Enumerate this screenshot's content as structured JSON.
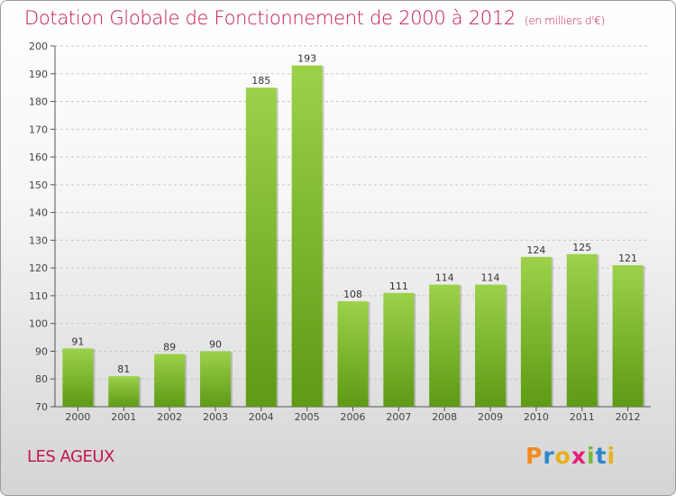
{
  "header": {
    "title": "Dotation Globale de Fonctionnement de 2000 à 2012",
    "unit": "(en milliers d'€)"
  },
  "footer": {
    "commune": "LES AGEUX",
    "logo_text": "Proxiti"
  },
  "colors": {
    "title": "#c4174a",
    "bar_top": "#9dd14a",
    "bar_bottom": "#5e9a14",
    "logo": [
      "#f08a1c",
      "#2d86c9",
      "#e8b01a",
      "#e2207a",
      "#7ab83a",
      "#2d86c9",
      "#e8b01a"
    ]
  },
  "chart_data": {
    "type": "bar",
    "categories": [
      "2000",
      "2001",
      "2002",
      "2003",
      "2004",
      "2005",
      "2006",
      "2007",
      "2008",
      "2009",
      "2010",
      "2011",
      "2012"
    ],
    "values": [
      91,
      81,
      89,
      90,
      185,
      193,
      108,
      111,
      114,
      114,
      124,
      125,
      121
    ],
    "title": "Dotation Globale de Fonctionnement de 2000 à 2012",
    "subtitle": "(en milliers d'€)",
    "xlabel": "",
    "ylabel": "",
    "ylim": [
      70,
      200
    ],
    "yticks": [
      70,
      80,
      90,
      100,
      110,
      120,
      130,
      140,
      150,
      160,
      170,
      180,
      190,
      200
    ],
    "grid": true,
    "legend": "none"
  }
}
